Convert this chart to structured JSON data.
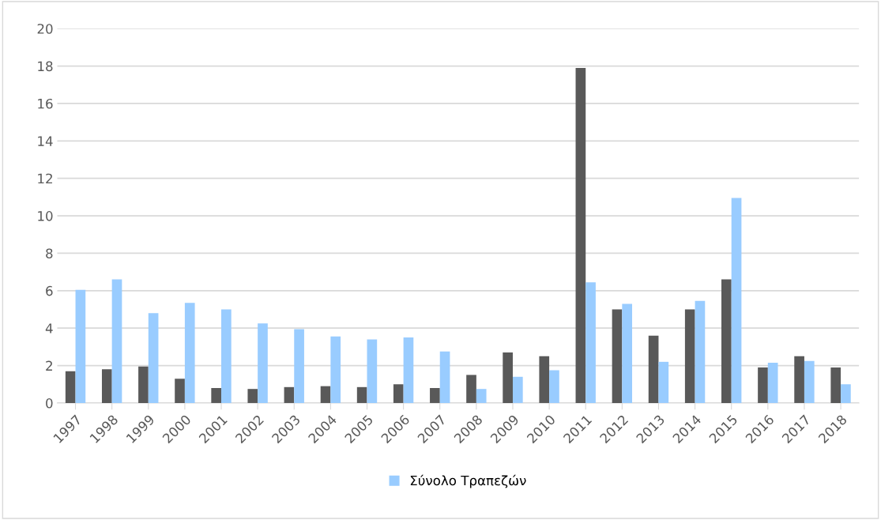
{
  "chart_data": {
    "type": "bar",
    "categories": [
      "1997",
      "1998",
      "1999",
      "2000",
      "2001",
      "2002",
      "2003",
      "2004",
      "2005",
      "2006",
      "2007",
      "2008",
      "2009",
      "2010",
      "2011",
      "2012",
      "2013",
      "2014",
      "2015",
      "2016",
      "2017",
      "2018"
    ],
    "series": [
      {
        "color": "#595959",
        "values": [
          1.7,
          1.8,
          1.95,
          1.3,
          0.8,
          0.75,
          0.85,
          0.9,
          0.85,
          1.0,
          0.8,
          1.5,
          2.7,
          2.5,
          17.9,
          5.0,
          3.6,
          5.0,
          6.6,
          1.9,
          2.5,
          1.9
        ]
      },
      {
        "name": "Σύνολο Τραπεζών",
        "color": "#99ccff",
        "values": [
          6.05,
          6.6,
          4.8,
          5.35,
          5.0,
          4.25,
          3.95,
          3.55,
          3.4,
          3.5,
          2.75,
          0.75,
          1.4,
          1.75,
          6.45,
          5.3,
          2.2,
          5.45,
          10.95,
          2.15,
          2.25,
          1.0
        ]
      }
    ],
    "ylim": [
      0,
      20
    ],
    "yticks": [
      0,
      2,
      4,
      6,
      8,
      10,
      12,
      14,
      16,
      18,
      20
    ],
    "grid": "y",
    "legend": "bottom"
  }
}
